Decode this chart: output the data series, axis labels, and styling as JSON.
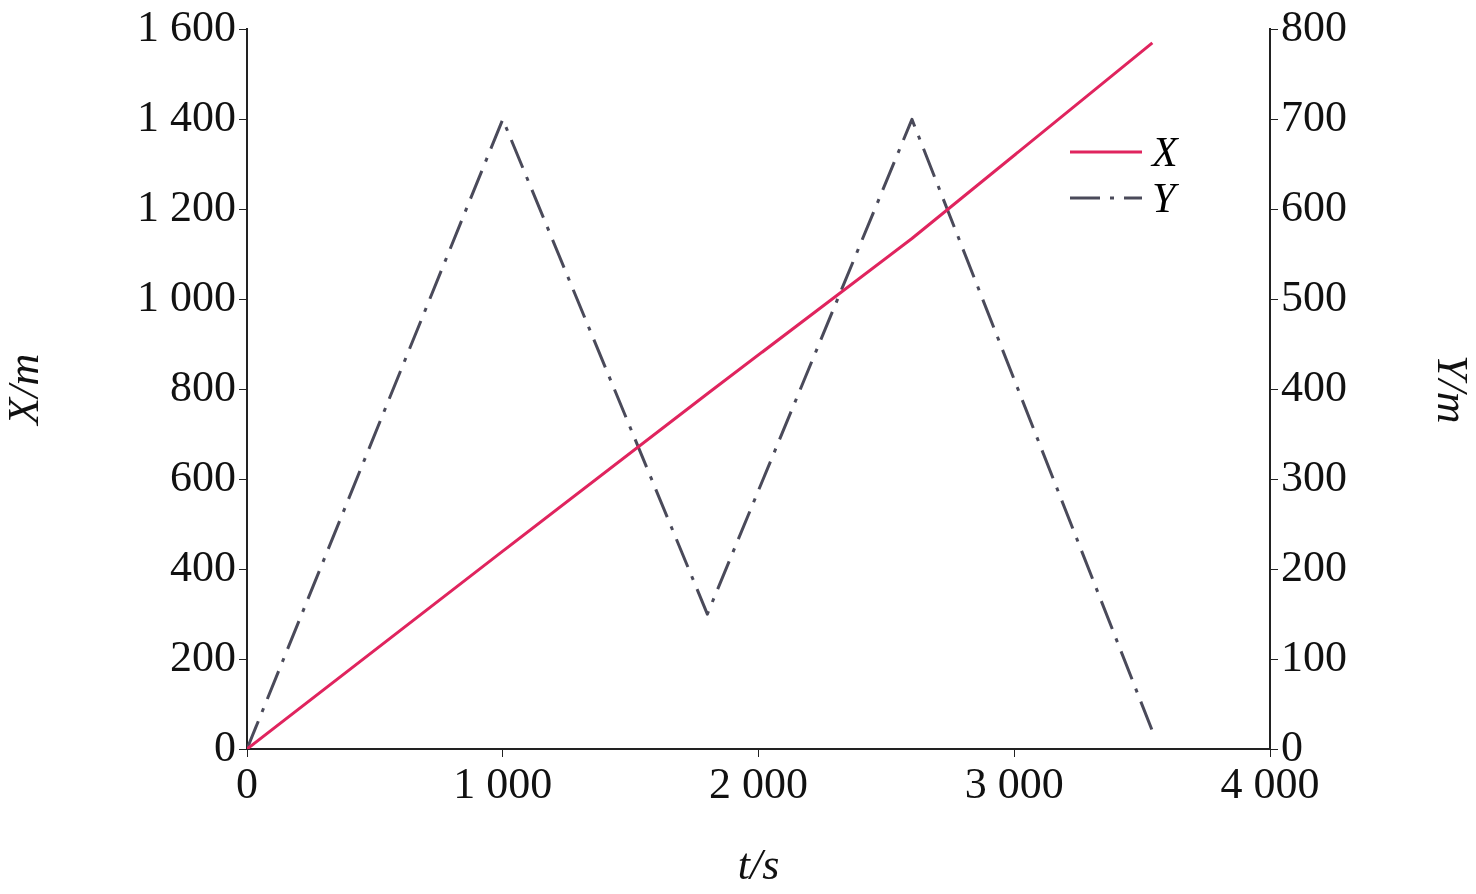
{
  "chart_data": {
    "type": "line",
    "xlabel": "t/s",
    "ylabel": "X/m",
    "y2label": "Y/m",
    "x": [
      0,
      1000,
      1800,
      2600,
      3540
    ],
    "series": [
      {
        "name": "X",
        "color": "#e0245e",
        "values": [
          0,
          440,
          790,
          1135,
          1570
        ],
        "line_style": "solid"
      },
      {
        "name": "Y",
        "color": "#4a4a5a",
        "values": [
          0,
          700,
          150,
          700,
          20
        ],
        "axis": "y2",
        "line_style": "dashdot"
      }
    ],
    "xlim": [
      0,
      4000
    ],
    "xticks": [
      0,
      {
        "value": 1000,
        "label": "1 000"
      },
      {
        "value": 2000,
        "label": "2 000"
      },
      {
        "value": 3000,
        "label": "3 000"
      },
      {
        "value": 4000,
        "label": "4 000"
      }
    ],
    "ylim": [
      0,
      1600
    ],
    "yticks": [
      0,
      200,
      400,
      600,
      800,
      {
        "value": 1000,
        "label": "1 000"
      },
      {
        "value": 1200,
        "label": "1 200"
      },
      {
        "value": 1400,
        "label": "1 400"
      },
      {
        "value": 1600,
        "label": "1 600"
      }
    ],
    "y2lim": [
      0,
      800
    ],
    "y2ticks": [
      0,
      100,
      200,
      300,
      400,
      500,
      600,
      700,
      800
    ],
    "grid": false,
    "legend": "top right",
    "marker": "none"
  }
}
